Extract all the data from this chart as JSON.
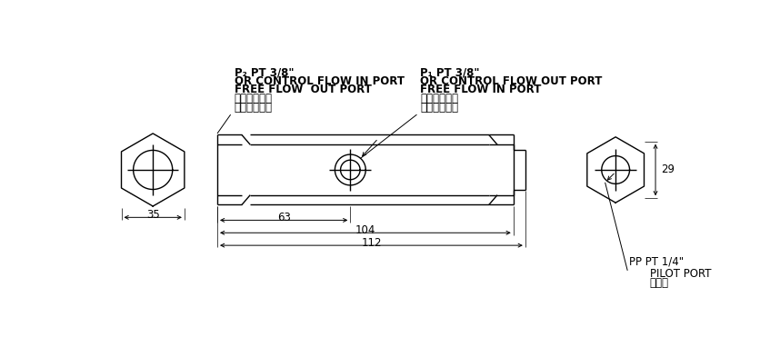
{
  "bg_color": "#ffffff",
  "line_color": "#000000",
  "text_color": "#000000",
  "dim_35_label": "35",
  "dim_112_label": "112",
  "dim_104_label": "104",
  "dim_63_label": "63",
  "dim_29_label": "29",
  "label_left_cn1": "自由油流出口",
  "label_left_cn2": "控制油流入口",
  "label_left_en1": "FREE FLOW  OUT PORT",
  "label_left_en2": "OR CONTROL FLOW IN PORT",
  "label_left_en3": "P₂ PT 3/8\"",
  "label_right_cn1": "自由油流入口",
  "label_right_cn2": "控制油流出口",
  "label_right_en1": "FREE FLOW IN PORT",
  "label_right_en2": "OR CONTROL FLOW OUT PORT",
  "label_right_en3": "P₁ PT 3/8\"",
  "label_pilot_cn": "引導口",
  "label_pilot_en1": "PILOT PORT",
  "label_pilot_en2": "PP PT 1/4\""
}
